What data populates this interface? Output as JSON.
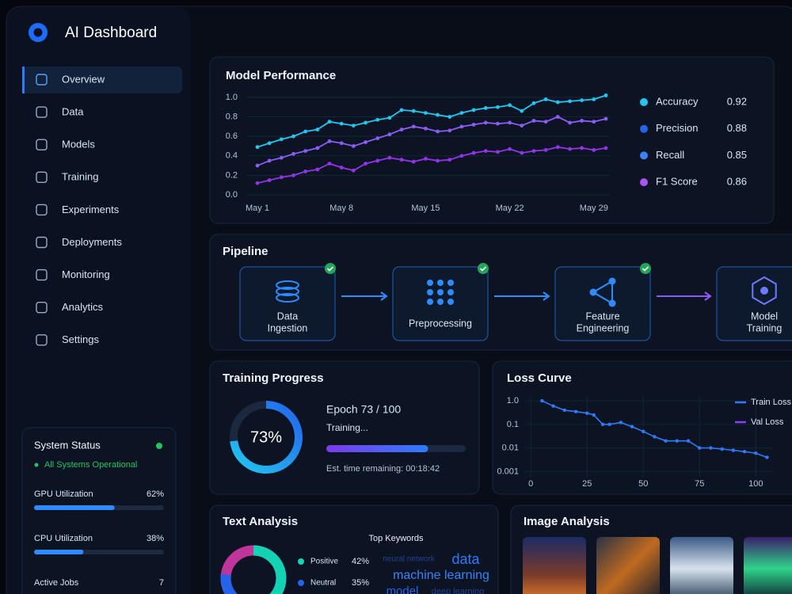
{
  "app": {
    "title": "AI Dashboard"
  },
  "nav": {
    "items": [
      "Overview",
      "Data",
      "Models",
      "Training",
      "Experiments",
      "Deployments",
      "Monitoring",
      "Analytics",
      "Settings"
    ],
    "active": 0
  },
  "system_status": {
    "title": "System Status",
    "status": "All Systems Operational",
    "metrics": [
      {
        "label": "GPU Utilization",
        "value": 62,
        "value_label": "62%"
      },
      {
        "label": "CPU Utilization",
        "value": 38,
        "value_label": "38%"
      },
      {
        "label": "Active Jobs",
        "value": 7
      }
    ]
  },
  "model_performance": {
    "type": "line",
    "title": "Model Performance",
    "categories": [
      "May 1",
      null,
      null,
      null,
      null,
      null,
      null,
      "May 8",
      null,
      null,
      null,
      null,
      null,
      null,
      "May 15",
      null,
      null,
      null,
      null,
      null,
      null,
      "May 22",
      null,
      null,
      null,
      null,
      null,
      null,
      "May 29",
      null
    ],
    "ylim": [
      0,
      1.04
    ],
    "yticks": [
      {
        "value": 0,
        "label": "0.0"
      },
      0.2,
      0.4,
      0.6,
      0.8,
      {
        "value": 1,
        "label": "1.0"
      }
    ],
    "grid": true,
    "series": [
      {
        "color": "#22c7f0",
        "values": [
          0.49,
          0.53,
          0.57,
          0.6,
          0.65,
          0.67,
          0.75,
          0.73,
          0.71,
          0.74,
          0.77,
          0.79,
          0.87,
          0.86,
          0.84,
          0.82,
          0.8,
          0.84,
          0.87,
          0.89,
          0.9,
          0.92,
          0.86,
          0.94,
          0.98,
          0.95,
          0.96,
          0.97,
          0.98,
          1.02
        ]
      },
      {
        "color": "#8b5cf6",
        "values": [
          0.3,
          0.35,
          0.38,
          0.42,
          0.45,
          0.48,
          0.55,
          0.53,
          0.5,
          0.54,
          0.58,
          0.62,
          0.67,
          0.7,
          0.68,
          0.65,
          0.66,
          0.7,
          0.72,
          0.74,
          0.73,
          0.74,
          0.71,
          0.76,
          0.75,
          0.8,
          0.74,
          0.76,
          0.75,
          0.78
        ]
      },
      {
        "color": "#9333ea",
        "values": [
          0.12,
          0.15,
          0.18,
          0.2,
          0.24,
          0.26,
          0.32,
          0.28,
          0.25,
          0.32,
          0.35,
          0.38,
          0.36,
          0.34,
          0.37,
          0.35,
          0.36,
          0.4,
          0.43,
          0.45,
          0.44,
          0.47,
          0.43,
          0.45,
          0.46,
          0.49,
          0.47,
          0.48,
          0.46,
          0.48
        ]
      }
    ],
    "legend": [
      {
        "name": "Accuracy",
        "color": "#22c7f0",
        "value": 0.92
      },
      {
        "name": "Precision",
        "color": "#2563eb",
        "value": 0.88
      },
      {
        "name": "Recall",
        "color": "#3b82f6",
        "value": 0.85
      },
      {
        "name": "F1 Score",
        "color": "#a855f7",
        "value": 0.86
      }
    ]
  },
  "pipeline": {
    "title": "Pipeline",
    "steps": [
      {
        "lines": [
          "Data",
          "Ingestion"
        ],
        "done": true
      },
      {
        "lines": [
          "Preprocessing"
        ],
        "done": true
      },
      {
        "lines": [
          "Feature",
          "Engineering"
        ],
        "done": true
      },
      {
        "lines": [
          "Model",
          "Training"
        ],
        "done": false
      }
    ]
  },
  "training_progress": {
    "title": "Training Progress",
    "percent": 73,
    "percent_label": "73%",
    "epoch_label": "Epoch 73 / 100",
    "status": "Training...",
    "remaining": "Est. time remaining: 00:18:42"
  },
  "loss_curve": {
    "type": "line",
    "title": "Loss Curve",
    "log_y": true,
    "x": [
      5,
      10,
      15,
      20,
      25,
      28,
      32,
      35,
      40,
      45,
      50,
      55,
      60,
      65,
      70,
      75,
      80,
      85,
      90,
      95,
      100,
      105
    ],
    "values": [
      1.0,
      0.6,
      0.4,
      0.35,
      0.3,
      0.25,
      0.1,
      0.1,
      0.12,
      0.08,
      0.05,
      0.03,
      0.02,
      0.02,
      0.02,
      0.01,
      0.01,
      0.009,
      0.008,
      0.007,
      0.006,
      0.004
    ],
    "color": "#2f7bff",
    "xlim": [
      -5,
      108
    ],
    "xticks": [
      0,
      25,
      50,
      75,
      100
    ],
    "ylim": [
      0.0006,
      1.6
    ],
    "yticks": [
      {
        "value": 1,
        "label": "1.0"
      },
      0.1,
      0.01,
      0.001
    ],
    "grid": true,
    "legend": [
      {
        "name": "Train Loss",
        "color": "#2f7bff"
      },
      {
        "name": "Val Loss",
        "color": "#8b3dff"
      }
    ]
  },
  "text_analysis": {
    "title": "Text Analysis",
    "sentiment": [
      {
        "label": "Positive",
        "value": 42,
        "value_label": "42%",
        "color": "#14d2b4"
      },
      {
        "label": "Neutral",
        "value": 35,
        "value_label": "35%",
        "color": "#2563eb"
      }
    ],
    "keywords_title": "Top Keywords",
    "keywords": [
      "neural network",
      "data",
      "machine learning",
      "model",
      "deep learning"
    ]
  },
  "image_analysis": {
    "title": "Image Analysis"
  }
}
